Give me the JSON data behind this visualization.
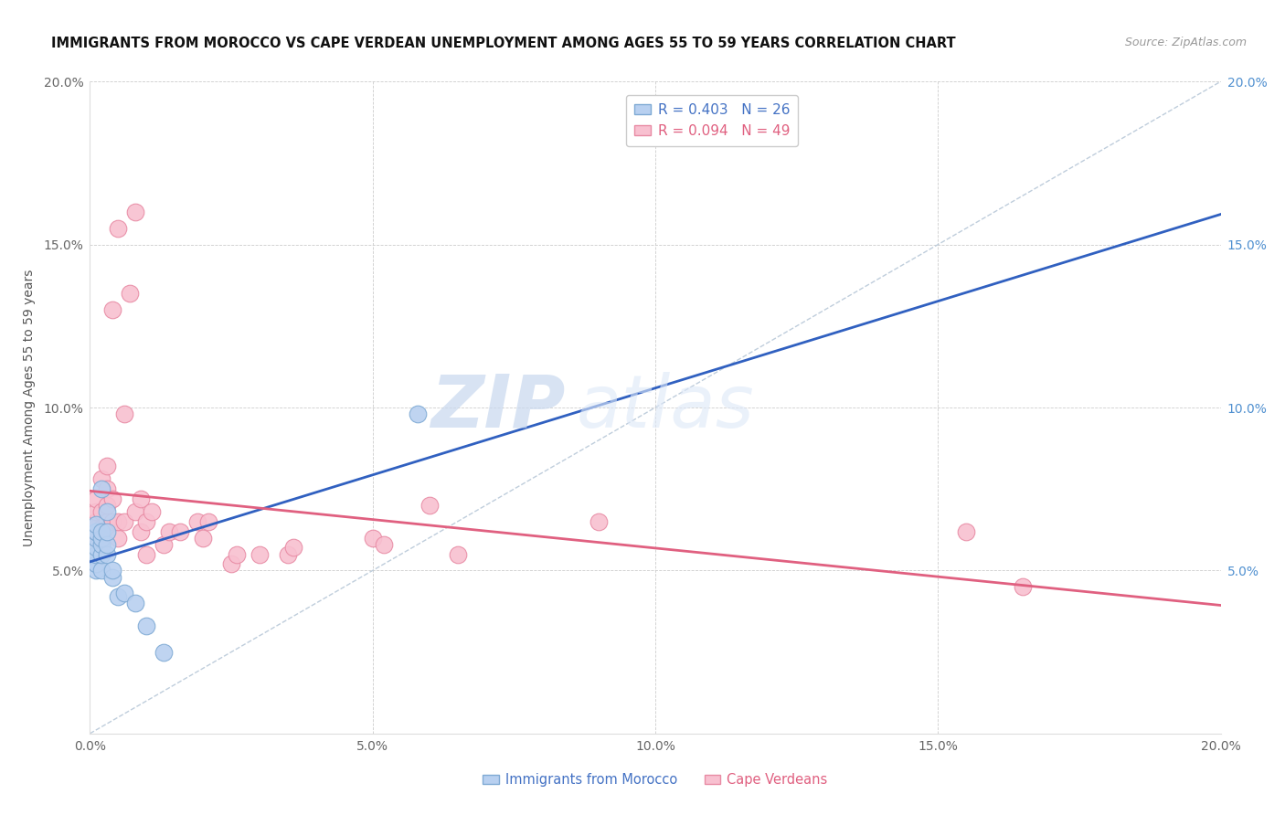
{
  "title": "IMMIGRANTS FROM MOROCCO VS CAPE VERDEAN UNEMPLOYMENT AMONG AGES 55 TO 59 YEARS CORRELATION CHART",
  "source": "Source: ZipAtlas.com",
  "ylabel": "Unemployment Among Ages 55 to 59 years",
  "xlim": [
    0,
    0.2
  ],
  "ylim": [
    0,
    0.2
  ],
  "xticks": [
    0.0,
    0.05,
    0.1,
    0.15,
    0.2
  ],
  "yticks": [
    0.0,
    0.05,
    0.1,
    0.15,
    0.2
  ],
  "morocco_color": "#b8d0f0",
  "morocco_edge": "#7faad4",
  "cape_color": "#f8c0d0",
  "cape_edge": "#e88ba4",
  "trendline_morocco_color": "#3060c0",
  "trendline_cape_color": "#e06080",
  "refline_color": "#b8c8d8",
  "watermark_zip": "ZIP",
  "watermark_atlas": "atlas",
  "morocco_x": [
    0.001,
    0.001,
    0.001,
    0.001,
    0.001,
    0.001,
    0.001,
    0.001,
    0.002,
    0.002,
    0.002,
    0.002,
    0.002,
    0.002,
    0.003,
    0.003,
    0.003,
    0.003,
    0.004,
    0.004,
    0.005,
    0.006,
    0.008,
    0.01,
    0.013,
    0.058
  ],
  "morocco_y": [
    0.05,
    0.052,
    0.055,
    0.057,
    0.06,
    0.062,
    0.062,
    0.064,
    0.05,
    0.055,
    0.058,
    0.06,
    0.062,
    0.075,
    0.055,
    0.058,
    0.062,
    0.068,
    0.048,
    0.05,
    0.042,
    0.043,
    0.04,
    0.033,
    0.025,
    0.098
  ],
  "cape_x": [
    0.001,
    0.001,
    0.001,
    0.001,
    0.001,
    0.002,
    0.002,
    0.002,
    0.002,
    0.002,
    0.003,
    0.003,
    0.003,
    0.003,
    0.003,
    0.004,
    0.004,
    0.004,
    0.005,
    0.005,
    0.005,
    0.006,
    0.006,
    0.007,
    0.008,
    0.008,
    0.009,
    0.009,
    0.01,
    0.01,
    0.011,
    0.013,
    0.014,
    0.016,
    0.019,
    0.02,
    0.021,
    0.025,
    0.026,
    0.03,
    0.035,
    0.036,
    0.05,
    0.052,
    0.06,
    0.065,
    0.09,
    0.155,
    0.165
  ],
  "cape_y": [
    0.06,
    0.063,
    0.065,
    0.068,
    0.072,
    0.058,
    0.06,
    0.063,
    0.068,
    0.078,
    0.062,
    0.065,
    0.07,
    0.075,
    0.082,
    0.065,
    0.072,
    0.13,
    0.06,
    0.065,
    0.155,
    0.065,
    0.098,
    0.135,
    0.068,
    0.16,
    0.062,
    0.072,
    0.055,
    0.065,
    0.068,
    0.058,
    0.062,
    0.062,
    0.065,
    0.06,
    0.065,
    0.052,
    0.055,
    0.055,
    0.055,
    0.057,
    0.06,
    0.058,
    0.07,
    0.055,
    0.065,
    0.062,
    0.045
  ],
  "legend_upper": [
    {
      "label": "R = 0.403   N = 26",
      "facecolor": "#b8d0f0",
      "edgecolor": "#7faad4"
    },
    {
      "label": "R = 0.094   N = 49",
      "facecolor": "#f8c0d0",
      "edgecolor": "#e88ba4"
    }
  ],
  "legend_bottom": [
    {
      "label": "Immigrants from Morocco",
      "facecolor": "#b8d0f0",
      "edgecolor": "#7faad4"
    },
    {
      "label": "Cape Verdeans",
      "facecolor": "#f8c0d0",
      "edgecolor": "#e88ba4"
    }
  ]
}
